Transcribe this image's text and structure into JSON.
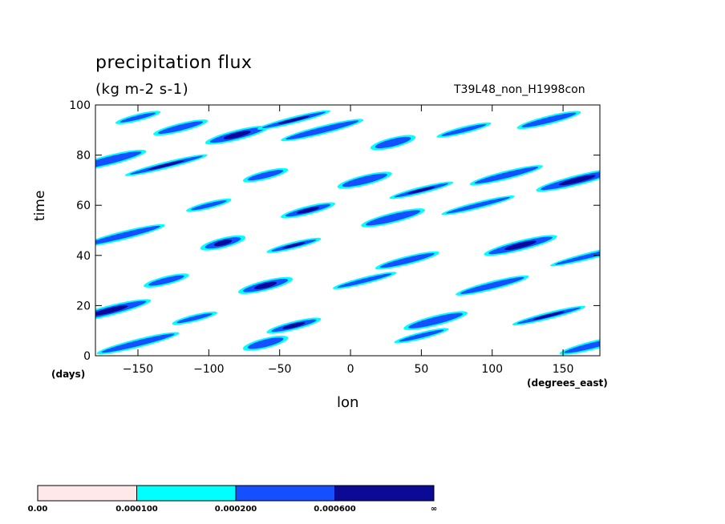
{
  "header": {
    "title": "precipitation flux",
    "units": "(kg m-2 s-1)",
    "run_name": "T39L48_non_H1998con"
  },
  "axes": {
    "ylabel": "time",
    "yunit": "(days)",
    "xlabel": "lon",
    "xunit": "(degrees_east)"
  },
  "chart_data": {
    "type": "heatmap",
    "title": "precipitation flux",
    "subtitle": "(kg m-2 s-1)",
    "xlabel": "lon",
    "ylabel": "time",
    "xlim": [
      -180,
      176
    ],
    "ylim": [
      0,
      100
    ],
    "xticks": [
      -150,
      -100,
      -50,
      0,
      50,
      100,
      150
    ],
    "yticks": [
      0,
      20,
      40,
      60,
      80,
      100
    ],
    "grid": false,
    "colorbar": {
      "levels": [
        "0.00",
        "0.000100",
        "0.000200",
        "0.000600",
        "∞"
      ],
      "colors": [
        "#ffe8e8",
        "#00ffff",
        "#1450ff",
        "#0a0a96"
      ]
    },
    "bands": [
      {
        "lon": -150,
        "time": 95,
        "level": 2
      },
      {
        "lon": -120,
        "time": 91,
        "level": 2
      },
      {
        "lon": -80,
        "time": 88,
        "level": 3
      },
      {
        "lon": -40,
        "time": 94,
        "level": 3
      },
      {
        "lon": -20,
        "time": 90,
        "level": 2
      },
      {
        "lon": 30,
        "time": 85,
        "level": 2
      },
      {
        "lon": 80,
        "time": 90,
        "level": 2
      },
      {
        "lon": 140,
        "time": 94,
        "level": 2
      },
      {
        "lon": -170,
        "time": 78,
        "level": 2
      },
      {
        "lon": -130,
        "time": 76,
        "level": 3
      },
      {
        "lon": -60,
        "time": 72,
        "level": 2
      },
      {
        "lon": 10,
        "time": 70,
        "level": 2
      },
      {
        "lon": 50,
        "time": 66,
        "level": 3
      },
      {
        "lon": 110,
        "time": 72,
        "level": 2
      },
      {
        "lon": 160,
        "time": 70,
        "level": 3
      },
      {
        "lon": -100,
        "time": 60,
        "level": 2
      },
      {
        "lon": -30,
        "time": 58,
        "level": 3
      },
      {
        "lon": 30,
        "time": 55,
        "level": 2
      },
      {
        "lon": 90,
        "time": 60,
        "level": 2
      },
      {
        "lon": -160,
        "time": 48,
        "level": 2
      },
      {
        "lon": -90,
        "time": 45,
        "level": 3
      },
      {
        "lon": -40,
        "time": 44,
        "level": 3
      },
      {
        "lon": 40,
        "time": 38,
        "level": 2
      },
      {
        "lon": 120,
        "time": 44,
        "level": 3
      },
      {
        "lon": 170,
        "time": 40,
        "level": 2
      },
      {
        "lon": -130,
        "time": 30,
        "level": 2
      },
      {
        "lon": -60,
        "time": 28,
        "level": 3
      },
      {
        "lon": 10,
        "time": 30,
        "level": 2
      },
      {
        "lon": 100,
        "time": 28,
        "level": 2
      },
      {
        "lon": -170,
        "time": 18,
        "level": 3
      },
      {
        "lon": -110,
        "time": 15,
        "level": 2
      },
      {
        "lon": -40,
        "time": 12,
        "level": 3
      },
      {
        "lon": 60,
        "time": 14,
        "level": 2
      },
      {
        "lon": 140,
        "time": 16,
        "level": 3
      },
      {
        "lon": -150,
        "time": 5,
        "level": 2
      },
      {
        "lon": -60,
        "time": 5,
        "level": 2
      },
      {
        "lon": 50,
        "time": 8,
        "level": 2
      },
      {
        "lon": 170,
        "time": 4,
        "level": 2
      }
    ]
  }
}
